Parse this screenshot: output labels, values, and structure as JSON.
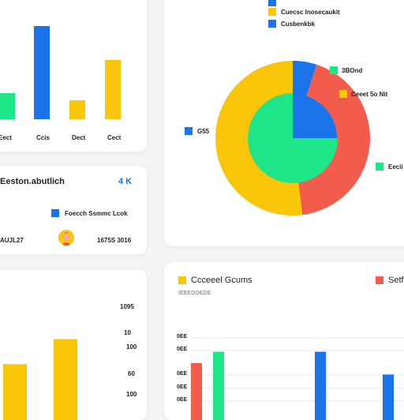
{
  "colors": {
    "blue": "#1a73e8",
    "green": "#1de588",
    "yellow": "#f9c609",
    "red": "#f25c4d"
  },
  "top_left_bar": {
    "labels": [
      "Eect",
      "Ccis",
      "Dect",
      "Cect"
    ]
  },
  "summary": {
    "title": "Eeston.abutlich",
    "badge": "4 K",
    "legend_label": "Foecch Ssmmc Lcok",
    "left_value": "AUJL27",
    "right_value": "1675S 3016"
  },
  "pie": {
    "legend_top": [
      "Cuecsc Inosecaukit",
      "Cusbenkbk"
    ],
    "labels": {
      "top_right": "3BOnd",
      "right": "Ceeet 5o Nit",
      "left": "G55",
      "bottom_right": "Eecii"
    }
  },
  "bottom_left_bar": {
    "ticks": [
      "1095",
      "10",
      "100",
      "60",
      "100"
    ]
  },
  "grouped": {
    "legend_yellow": "Ccceeel Gcums",
    "legend_red": "Setf",
    "subtitle": "IEEEOOEDE",
    "ticks": [
      "0EE",
      "0EE",
      "0EE",
      "0EE",
      "0EE"
    ]
  },
  "chart_data": [
    {
      "type": "bar",
      "categories": [
        "Eect",
        "Ccis",
        "Dect",
        "Cect"
      ],
      "values": [
        33,
        118,
        24,
        75
      ]
    },
    {
      "type": "pie",
      "labels": [
        "3BOnd",
        "Ceeet 5o Nit",
        "G55",
        "Eecii"
      ],
      "inner": [
        {
          "color": "blue",
          "value": 25
        },
        {
          "color": "green",
          "value": 75
        }
      ],
      "outer": [
        {
          "color": "blue",
          "value": 5
        },
        {
          "color": "red",
          "value": 43
        },
        {
          "color": "yellow",
          "value": 52
        }
      ]
    },
    {
      "type": "bar",
      "ticks": [
        "1095",
        "10",
        "100",
        "60",
        "100"
      ],
      "values": [
        58,
        84
      ]
    },
    {
      "type": "bar",
      "series": [
        {
          "color": "red",
          "values": [
            80
          ]
        },
        {
          "color": "green",
          "values": [
            96
          ]
        },
        {
          "color": "blue",
          "values": [
            96,
            64
          ]
        }
      ]
    }
  ]
}
